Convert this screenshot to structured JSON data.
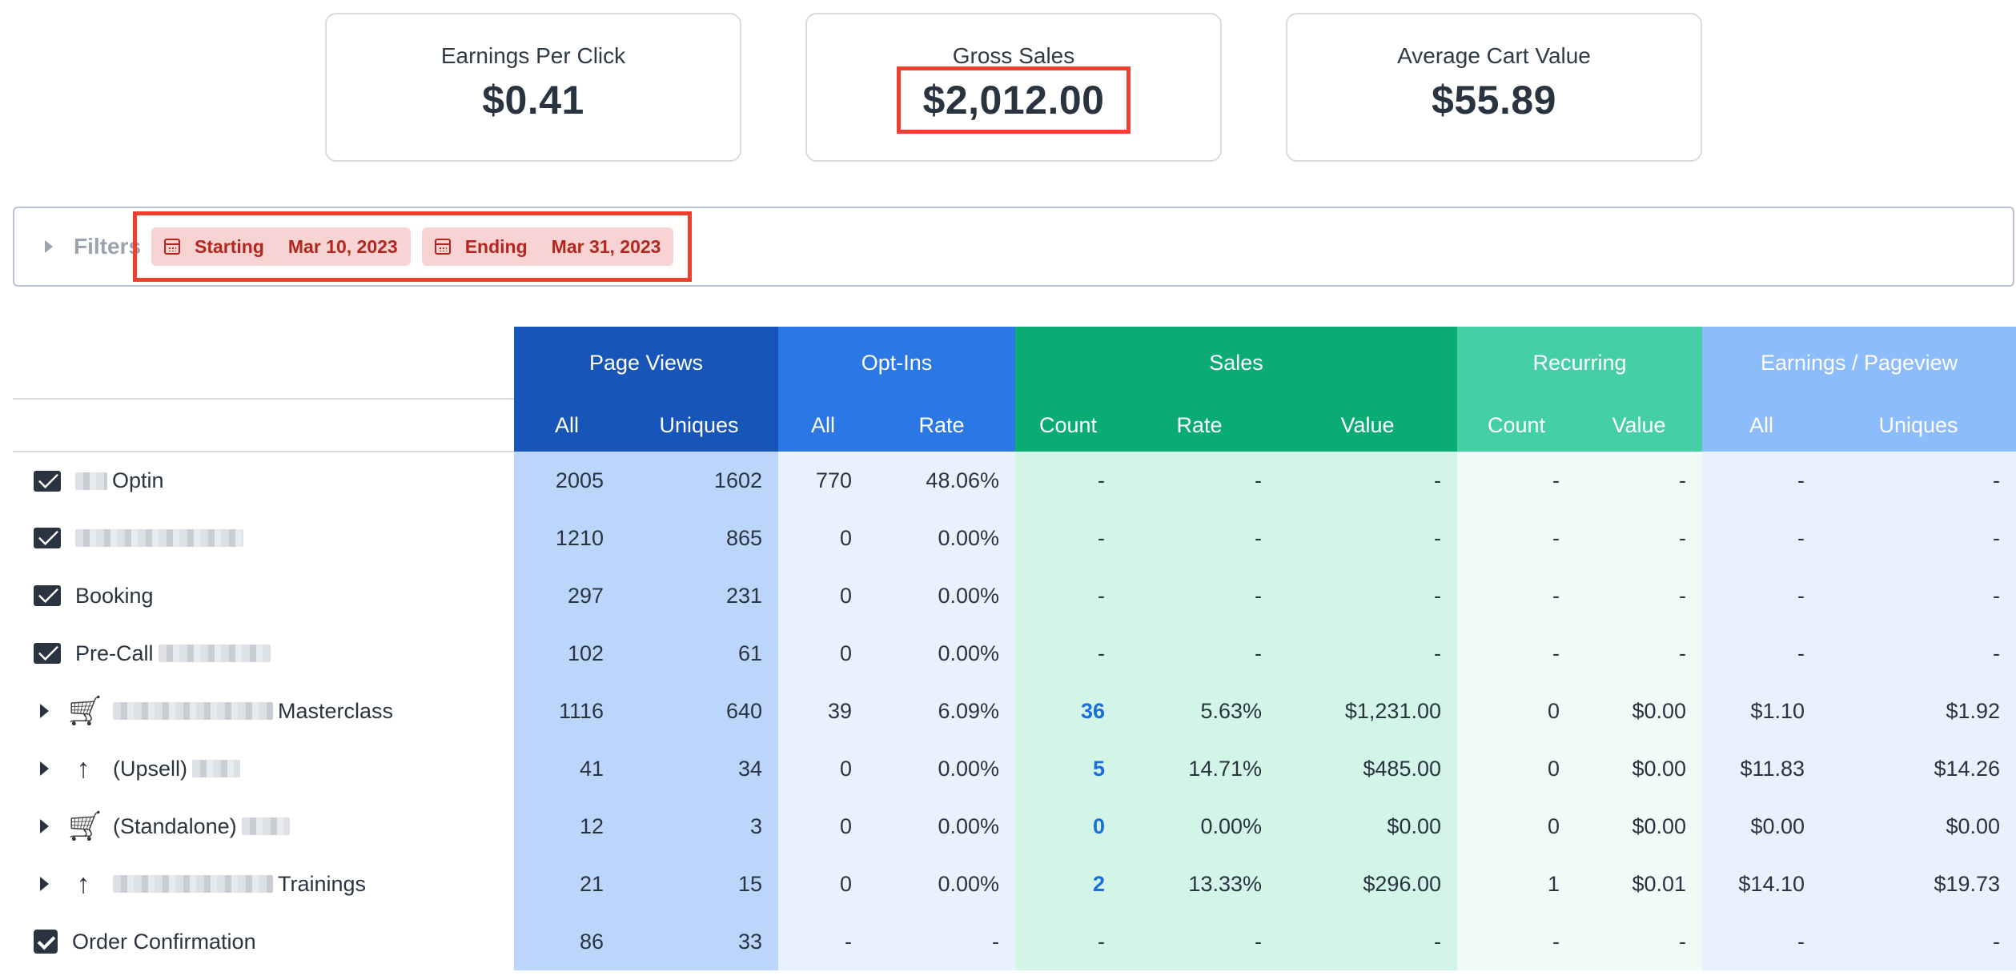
{
  "kpis": [
    {
      "label": "Earnings Per Click",
      "value": "$0.41"
    },
    {
      "label": "Gross Sales",
      "value": "$2,012.00"
    },
    {
      "label": "Average Cart Value",
      "value": "$55.89"
    }
  ],
  "filters": {
    "label": "Filters",
    "starting_label": "Starting",
    "starting_value": "Mar 10, 2023",
    "ending_label": "Ending",
    "ending_value": "Mar 31, 2023"
  },
  "table": {
    "groups": [
      "Page Views",
      "Opt-Ins",
      "Sales",
      "Recurring",
      "Earnings / Pageview"
    ],
    "subheaders": [
      "All",
      "Uniques",
      "All",
      "Rate",
      "Count",
      "Rate",
      "Value",
      "Count",
      "Value",
      "All",
      "Uniques"
    ],
    "rows": [
      {
        "icon": "envelope-icon",
        "expand": false,
        "name": "Optin",
        "cells": [
          "2005",
          "1602",
          "770",
          "48.06%",
          "-",
          "-",
          "-",
          "-",
          "-",
          "-",
          "-"
        ]
      },
      {
        "icon": "envelope-icon",
        "expand": false,
        "name": "",
        "cells": [
          "1210",
          "865",
          "0",
          "0.00%",
          "-",
          "-",
          "-",
          "-",
          "-",
          "-",
          "-"
        ]
      },
      {
        "icon": "envelope-icon",
        "expand": false,
        "name": "Booking",
        "cells": [
          "297",
          "231",
          "0",
          "0.00%",
          "-",
          "-",
          "-",
          "-",
          "-",
          "-",
          "-"
        ]
      },
      {
        "icon": "envelope-icon",
        "expand": false,
        "name": "Pre-Call",
        "cells": [
          "102",
          "61",
          "0",
          "0.00%",
          "-",
          "-",
          "-",
          "-",
          "-",
          "-",
          "-"
        ]
      },
      {
        "icon": "cart-icon",
        "expand": true,
        "name": "Masterclass",
        "cells": [
          "1116",
          "640",
          "39",
          "6.09%",
          "36",
          "5.63%",
          "$1,231.00",
          "0",
          "$0.00",
          "$1.10",
          "$1.92"
        ]
      },
      {
        "icon": "arrow-up-icon",
        "expand": true,
        "name": "(Upsell)",
        "cells": [
          "41",
          "34",
          "0",
          "0.00%",
          "5",
          "14.71%",
          "$485.00",
          "0",
          "$0.00",
          "$11.83",
          "$14.26"
        ]
      },
      {
        "icon": "cart-icon",
        "expand": true,
        "name": "(Standalone)",
        "cells": [
          "12",
          "3",
          "0",
          "0.00%",
          "0",
          "0.00%",
          "$0.00",
          "0",
          "$0.00",
          "$0.00",
          "$0.00"
        ]
      },
      {
        "icon": "arrow-up-icon",
        "expand": true,
        "name": "Trainings",
        "cells": [
          "21",
          "15",
          "0",
          "0.00%",
          "2",
          "13.33%",
          "$296.00",
          "1",
          "$0.01",
          "$14.10",
          "$19.73"
        ]
      },
      {
        "icon": "checkbox-icon",
        "expand": false,
        "name": "Order Confirmation",
        "cells": [
          "86",
          "33",
          "-",
          "-",
          "-",
          "-",
          "-",
          "-",
          "-",
          "-",
          "-"
        ]
      }
    ]
  }
}
